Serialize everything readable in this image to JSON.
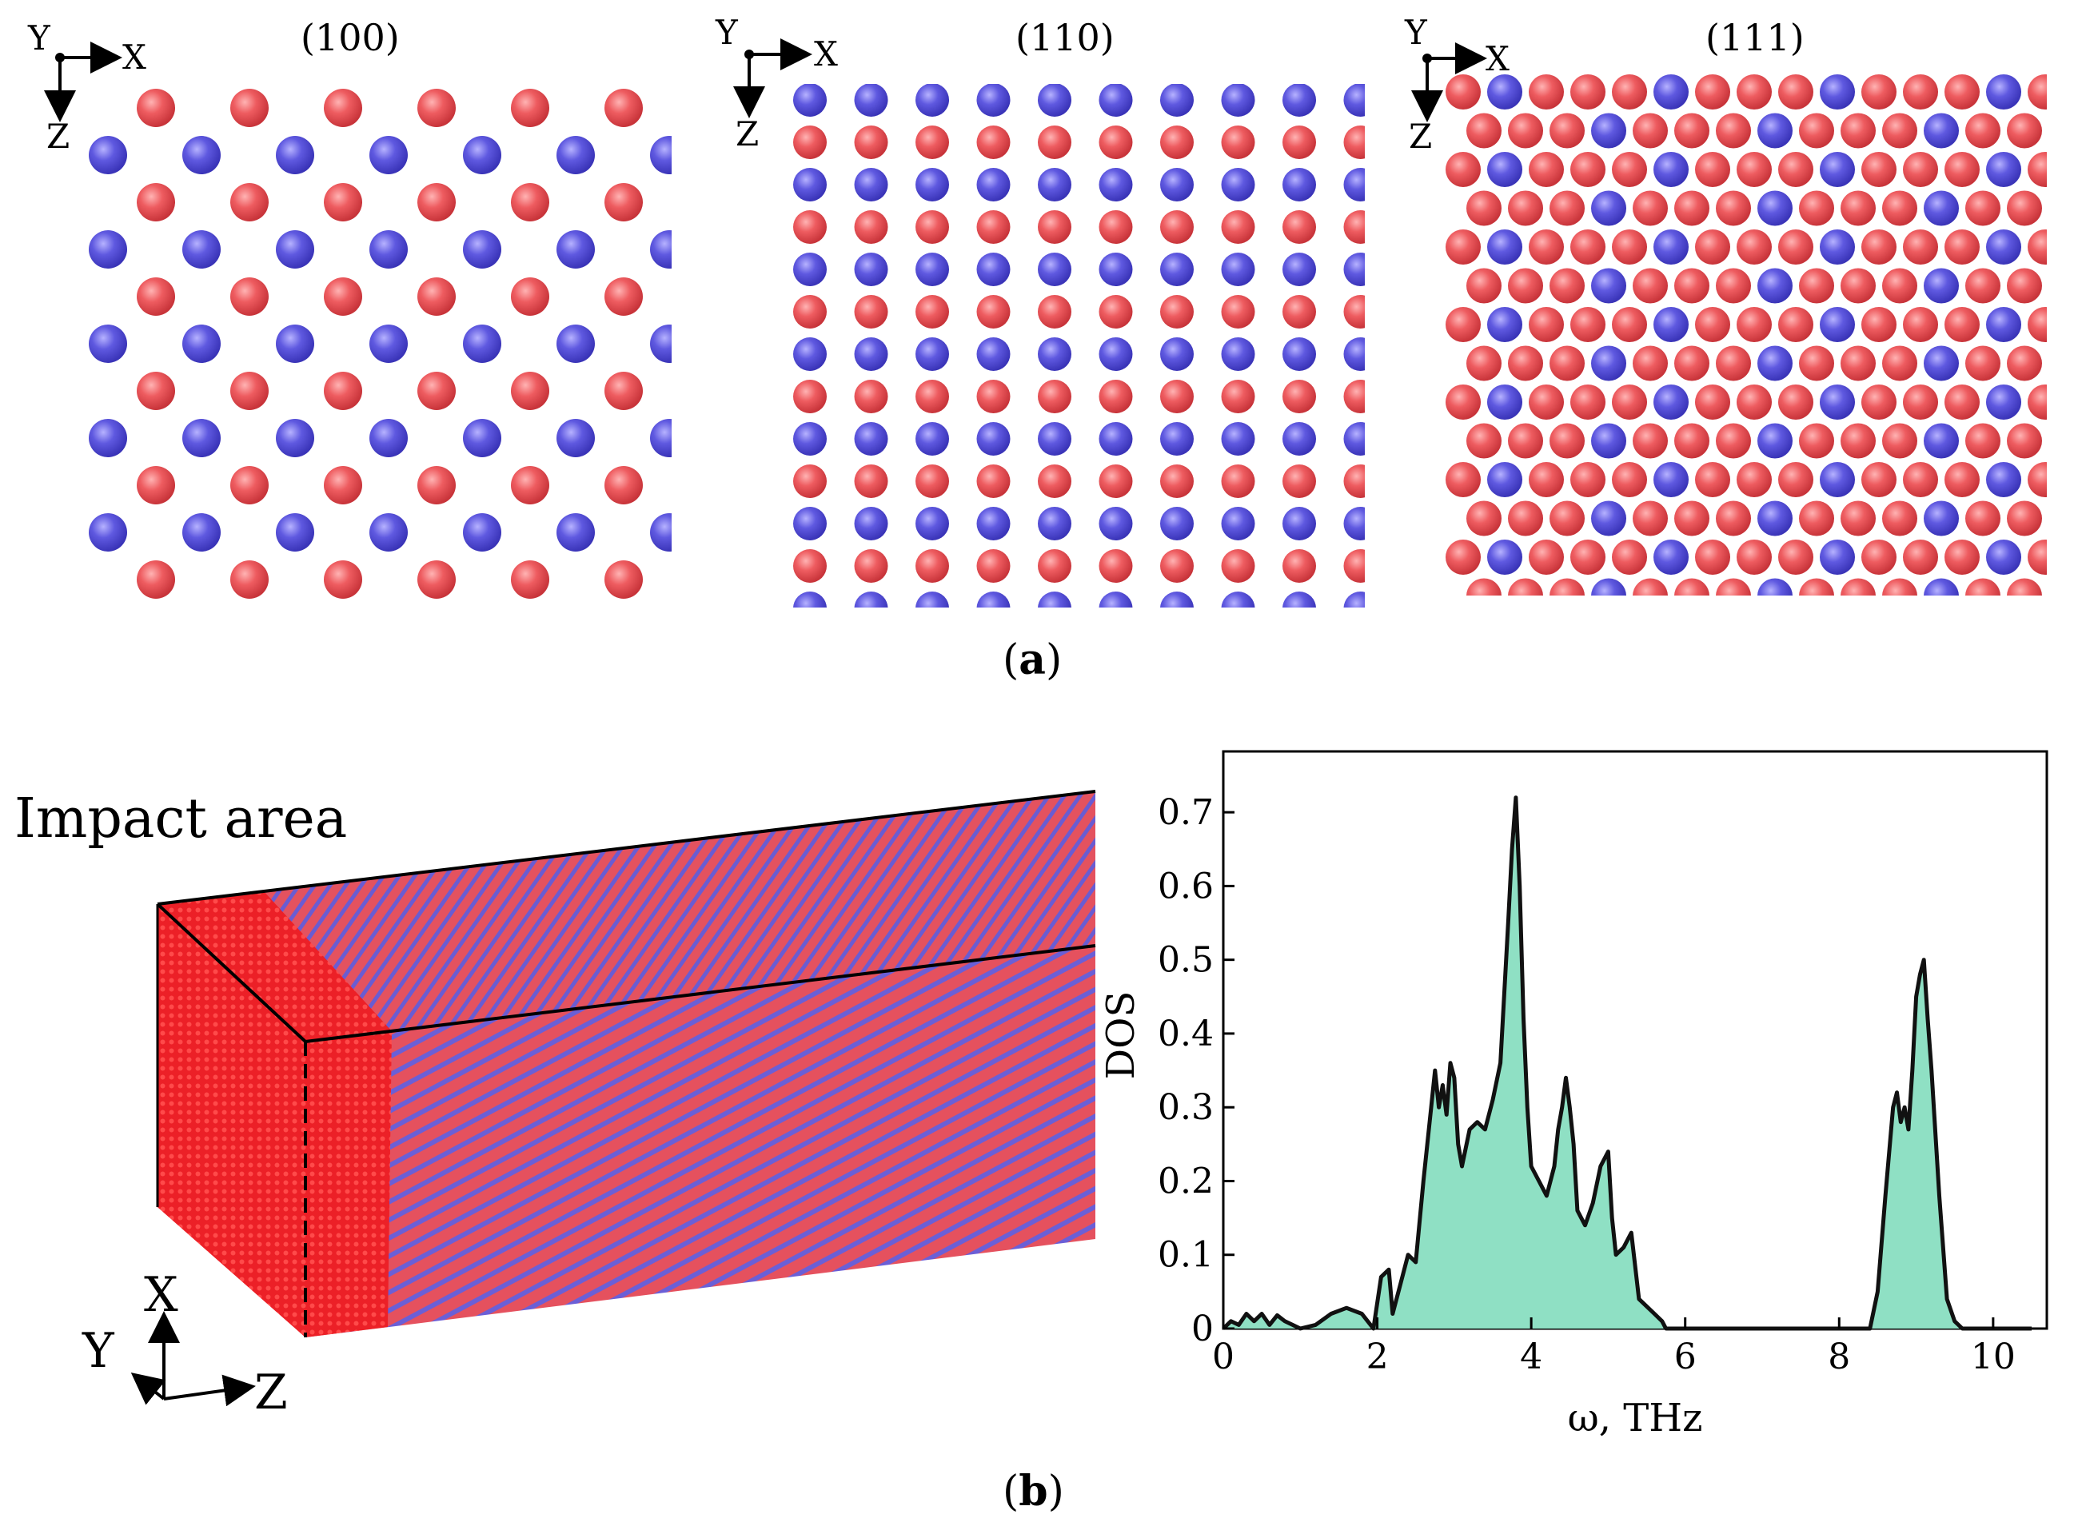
{
  "figure": {
    "panel_a": {
      "caption_letter": "a",
      "colors": {
        "red": "#e8545a",
        "blue": "#5a55dc"
      },
      "views": [
        {
          "title": "(100)",
          "axes": {
            "out": "Y",
            "right": "X",
            "down": "Z"
          }
        },
        {
          "title": "(110)",
          "axes": {
            "out": "Y",
            "right": "X",
            "down": "Z"
          }
        },
        {
          "title": "(111)",
          "axes": {
            "out": "Y",
            "right": "X",
            "down": "Z"
          }
        }
      ]
    },
    "panel_b": {
      "caption_letter": "b",
      "impact_label": "Impact area",
      "axes": {
        "up": "X",
        "out": "Y",
        "right": "Z"
      },
      "colors": {
        "front_face": "#ee1d23",
        "body_red": "#e9515f",
        "body_blue": "#6a5fd8"
      }
    }
  },
  "chart_data": {
    "type": "area",
    "title": "",
    "xlabel": "ω, THz",
    "ylabel": "DOS",
    "xlim": [
      0,
      10.5
    ],
    "ylim": [
      0,
      0.75
    ],
    "xticks": [
      "0",
      "2",
      "4",
      "6",
      "8",
      "10"
    ],
    "yticks": [
      "0",
      "0.1",
      "0.2",
      "0.3",
      "0.4",
      "0.5",
      "0.6",
      "0.7"
    ],
    "fill_color": "#8fe0c4",
    "line_color": "#111111",
    "x": [
      0,
      0.1,
      0.2,
      0.3,
      0.4,
      0.5,
      0.6,
      0.7,
      0.8,
      0.9,
      1.0,
      1.2,
      1.4,
      1.6,
      1.8,
      1.95,
      2.05,
      2.15,
      2.2,
      2.3,
      2.4,
      2.5,
      2.6,
      2.7,
      2.75,
      2.8,
      2.85,
      2.9,
      2.95,
      3.0,
      3.05,
      3.1,
      3.2,
      3.3,
      3.4,
      3.5,
      3.6,
      3.7,
      3.75,
      3.8,
      3.85,
      3.9,
      3.95,
      4.0,
      4.1,
      4.2,
      4.3,
      4.35,
      4.4,
      4.45,
      4.5,
      4.55,
      4.6,
      4.7,
      4.8,
      4.9,
      5.0,
      5.05,
      5.1,
      5.2,
      5.3,
      5.4,
      5.5,
      5.6,
      5.7,
      5.75,
      5.8,
      6.0,
      7.0,
      8.0,
      8.4,
      8.5,
      8.6,
      8.7,
      8.75,
      8.8,
      8.85,
      8.9,
      8.95,
      9.0,
      9.05,
      9.1,
      9.15,
      9.2,
      9.3,
      9.4,
      9.5,
      9.6,
      10.5
    ],
    "values": [
      0,
      0.01,
      0.005,
      0.02,
      0.01,
      0.02,
      0.005,
      0.018,
      0.01,
      0.005,
      0.0,
      0.005,
      0.02,
      0.028,
      0.02,
      0.0,
      0.07,
      0.08,
      0.02,
      0.06,
      0.1,
      0.09,
      0.2,
      0.3,
      0.35,
      0.3,
      0.33,
      0.29,
      0.36,
      0.34,
      0.25,
      0.22,
      0.27,
      0.28,
      0.27,
      0.31,
      0.36,
      0.55,
      0.65,
      0.72,
      0.6,
      0.42,
      0.3,
      0.22,
      0.2,
      0.18,
      0.22,
      0.27,
      0.3,
      0.34,
      0.3,
      0.25,
      0.16,
      0.14,
      0.17,
      0.22,
      0.24,
      0.15,
      0.1,
      0.11,
      0.13,
      0.04,
      0.03,
      0.02,
      0.01,
      0.0,
      0.0,
      0.0,
      0.0,
      0.0,
      0.0,
      0.05,
      0.18,
      0.3,
      0.32,
      0.28,
      0.3,
      0.27,
      0.35,
      0.45,
      0.48,
      0.5,
      0.42,
      0.35,
      0.18,
      0.04,
      0.01,
      0.0,
      0.0
    ]
  }
}
